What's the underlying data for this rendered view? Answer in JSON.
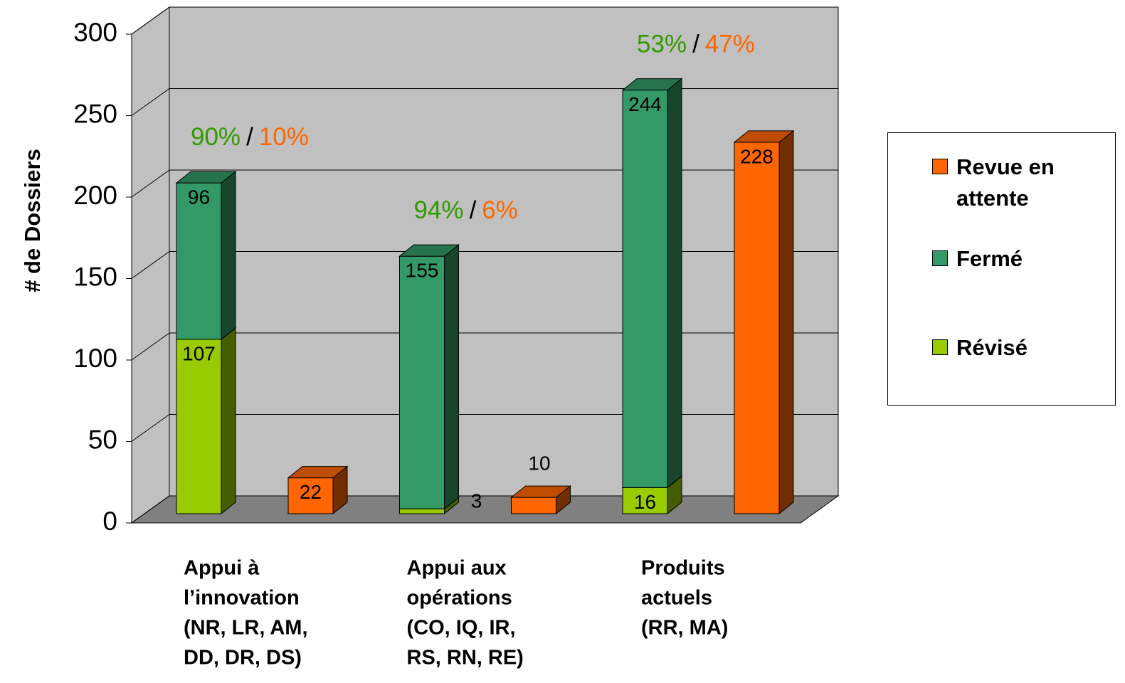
{
  "chart_data": {
    "type": "bar3d",
    "y_axis_label": "# de Dossiers",
    "categories": [
      [
        "Appui à",
        "l’innovation",
        "(NR, LR, AM,",
        "DD, DR, DS)"
      ],
      [
        "Appui aux",
        "opérations",
        "(CO, IQ, IR,",
        "RS, RN, RE)"
      ],
      [
        "Produits",
        "actuels",
        "(RR, MA)"
      ]
    ],
    "series": [
      {
        "name": "Revue en attente",
        "color": "#ff6600",
        "values": [
          22,
          10,
          228
        ]
      },
      {
        "name": "Fermé",
        "color": "#339966",
        "values": [
          96,
          155,
          244
        ]
      },
      {
        "name": "Révisé",
        "color": "#99cc00",
        "values": [
          107,
          3,
          16
        ]
      }
    ],
    "annotations": [
      [
        {
          "text": "90%",
          "color": "#339900"
        },
        {
          "text": "/",
          "color": "#000000"
        },
        {
          "text": "10%",
          "color": "#ff6600"
        }
      ],
      [
        {
          "text": "94%",
          "color": "#339900"
        },
        {
          "text": "/",
          "color": "#000000"
        },
        {
          "text": "6%",
          "color": "#ff6600"
        }
      ],
      [
        {
          "text": "53%",
          "color": "#339900"
        },
        {
          "text": "/",
          "color": "#000000"
        },
        {
          "text": "47%",
          "color": "#ff6600"
        }
      ]
    ],
    "ylim": [
      0,
      300
    ],
    "yticks": [
      0,
      50,
      100,
      150,
      200,
      250,
      300
    ],
    "grid": true,
    "legend": "right"
  }
}
